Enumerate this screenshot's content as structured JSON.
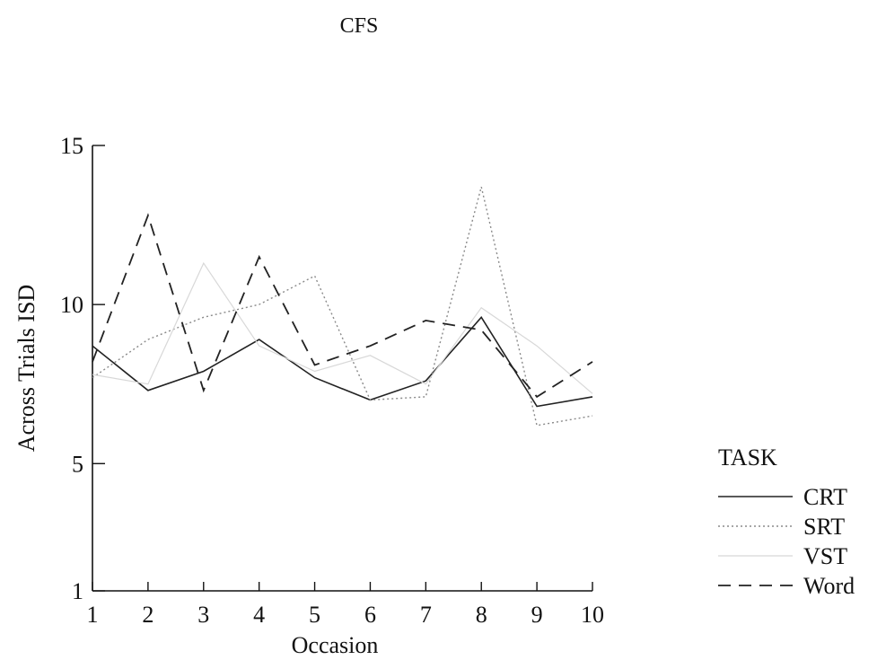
{
  "chart_data": {
    "type": "line",
    "title": "CFS",
    "xlabel": "Occasion",
    "ylabel": "Across Trials ISD",
    "x": [
      1,
      2,
      3,
      4,
      5,
      6,
      7,
      8,
      9,
      10
    ],
    "xlim": [
      1,
      10
    ],
    "ylim": [
      1,
      15
    ],
    "yticks": [
      1,
      5,
      10,
      15
    ],
    "grid": false,
    "legend": {
      "title": "TASK",
      "position": "right"
    },
    "series": [
      {
        "name": "CRT",
        "style": "solid",
        "color": "#222222",
        "values": [
          8.7,
          7.3,
          7.9,
          8.9,
          7.7,
          7.0,
          7.6,
          9.6,
          6.8,
          7.1
        ]
      },
      {
        "name": "SRT",
        "style": "dotted",
        "color": "#8a8a8a",
        "values": [
          7.7,
          8.9,
          9.6,
          10.0,
          10.9,
          7.0,
          7.1,
          13.7,
          6.2,
          6.5
        ]
      },
      {
        "name": "VST",
        "style": "faint",
        "color": "#d8d8d8",
        "values": [
          7.8,
          7.5,
          11.3,
          8.7,
          7.9,
          8.4,
          7.5,
          9.9,
          8.7,
          7.2
        ]
      },
      {
        "name": "Word",
        "style": "dashed",
        "color": "#222222",
        "values": [
          8.2,
          12.8,
          7.3,
          11.5,
          8.1,
          8.7,
          9.5,
          9.2,
          7.1,
          8.2
        ]
      }
    ]
  }
}
